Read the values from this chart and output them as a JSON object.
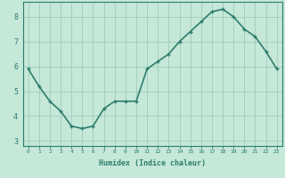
{
  "x": [
    0,
    1,
    2,
    3,
    4,
    5,
    6,
    7,
    8,
    9,
    10,
    11,
    12,
    13,
    14,
    15,
    16,
    17,
    18,
    19,
    20,
    21,
    22,
    23
  ],
  "y": [
    5.9,
    5.2,
    4.6,
    4.2,
    3.6,
    3.5,
    3.6,
    4.3,
    4.6,
    4.6,
    4.6,
    5.9,
    6.2,
    6.5,
    7.0,
    7.4,
    7.8,
    8.2,
    8.3,
    8.0,
    7.5,
    7.2,
    6.6,
    5.9
  ],
  "xlabel": "Humidex (Indice chaleur)",
  "ylabel": "",
  "ylim": [
    2.8,
    8.6
  ],
  "xlim": [
    -0.5,
    23.5
  ],
  "yticks": [
    3,
    4,
    5,
    6,
    7,
    8
  ],
  "xticks": [
    0,
    1,
    2,
    3,
    4,
    5,
    6,
    7,
    8,
    9,
    10,
    11,
    12,
    13,
    14,
    15,
    16,
    17,
    18,
    19,
    20,
    21,
    22,
    23
  ],
  "line_color": "#2e7d6e",
  "marker_color": "#2e7d6e",
  "bg_color": "#c5e8d8",
  "grid_color": "#a0ccbb",
  "axes_color": "#2e7d6e",
  "tick_color": "#2e7d6e",
  "label_color": "#2e7d6e",
  "line_width": 1.2,
  "marker_size": 3.0
}
